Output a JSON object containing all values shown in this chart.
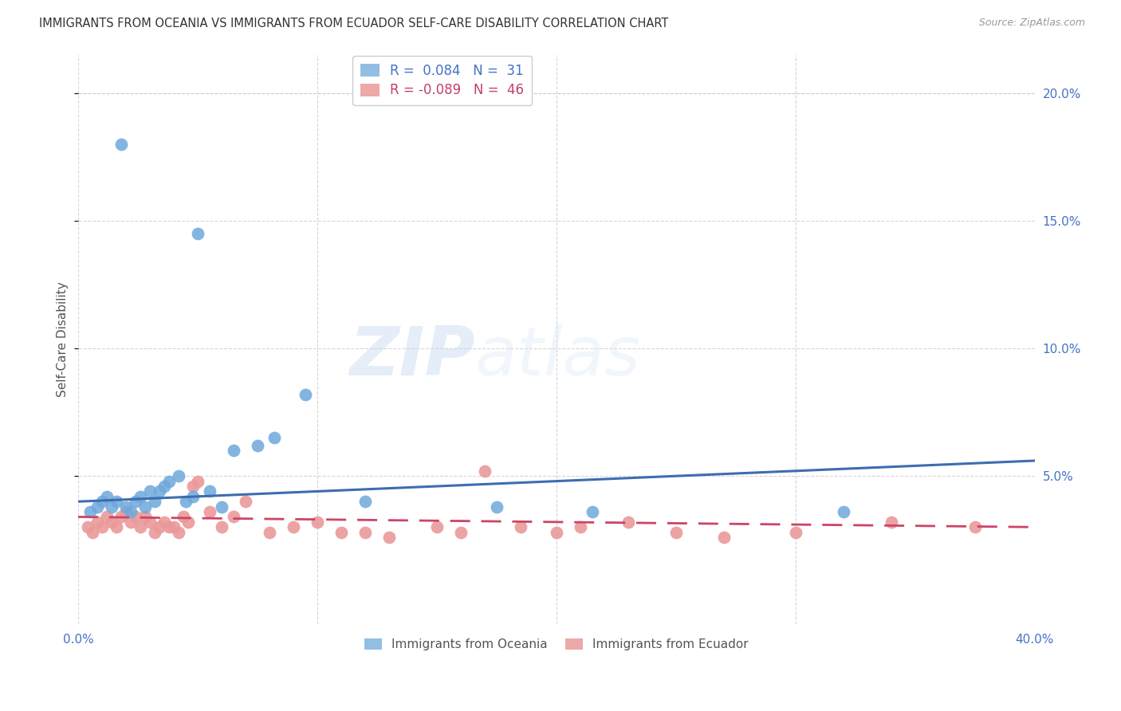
{
  "title": "IMMIGRANTS FROM OCEANIA VS IMMIGRANTS FROM ECUADOR SELF-CARE DISABILITY CORRELATION CHART",
  "source": "Source: ZipAtlas.com",
  "ylabel_label": "Self-Care Disability",
  "xlim": [
    0.0,
    0.4
  ],
  "ylim": [
    -0.008,
    0.215
  ],
  "legend_R1": "0.084",
  "legend_N1": "31",
  "legend_R2": "-0.089",
  "legend_N2": "46",
  "blue_color": "#6FA8DC",
  "pink_color": "#EA9999",
  "trend_blue": "#3C6DB0",
  "trend_pink": "#CC4466",
  "background_color": "#FFFFFF",
  "blue_scatter_x": [
    0.005,
    0.008,
    0.01,
    0.012,
    0.014,
    0.016,
    0.018,
    0.02,
    0.022,
    0.024,
    0.026,
    0.028,
    0.03,
    0.032,
    0.034,
    0.036,
    0.038,
    0.042,
    0.045,
    0.048,
    0.05,
    0.055,
    0.06,
    0.065,
    0.075,
    0.082,
    0.095,
    0.12,
    0.175,
    0.215,
    0.32
  ],
  "blue_scatter_y": [
    0.036,
    0.038,
    0.04,
    0.042,
    0.038,
    0.04,
    0.18,
    0.038,
    0.036,
    0.04,
    0.042,
    0.038,
    0.044,
    0.04,
    0.044,
    0.046,
    0.048,
    0.05,
    0.04,
    0.042,
    0.145,
    0.044,
    0.038,
    0.06,
    0.062,
    0.065,
    0.082,
    0.04,
    0.038,
    0.036,
    0.036
  ],
  "pink_scatter_x": [
    0.004,
    0.006,
    0.008,
    0.01,
    0.012,
    0.014,
    0.016,
    0.018,
    0.02,
    0.022,
    0.024,
    0.026,
    0.028,
    0.03,
    0.032,
    0.034,
    0.036,
    0.038,
    0.04,
    0.042,
    0.044,
    0.046,
    0.048,
    0.05,
    0.055,
    0.06,
    0.065,
    0.07,
    0.08,
    0.09,
    0.1,
    0.11,
    0.12,
    0.13,
    0.15,
    0.16,
    0.17,
    0.185,
    0.2,
    0.21,
    0.23,
    0.25,
    0.27,
    0.3,
    0.34,
    0.375
  ],
  "pink_scatter_y": [
    0.03,
    0.028,
    0.032,
    0.03,
    0.034,
    0.032,
    0.03,
    0.034,
    0.036,
    0.032,
    0.034,
    0.03,
    0.034,
    0.032,
    0.028,
    0.03,
    0.032,
    0.03,
    0.03,
    0.028,
    0.034,
    0.032,
    0.046,
    0.048,
    0.036,
    0.03,
    0.034,
    0.04,
    0.028,
    0.03,
    0.032,
    0.028,
    0.028,
    0.026,
    0.03,
    0.028,
    0.052,
    0.03,
    0.028,
    0.03,
    0.032,
    0.028,
    0.026,
    0.028,
    0.032,
    0.03
  ],
  "blue_trend_x": [
    0.0,
    0.4
  ],
  "blue_trend_y": [
    0.04,
    0.056
  ],
  "pink_trend_x": [
    0.0,
    0.4
  ],
  "pink_trend_y": [
    0.034,
    0.03
  ],
  "x_ticks": [
    0.0,
    0.1,
    0.2,
    0.3,
    0.4
  ],
  "x_tick_labels": [
    "0.0%",
    "",
    "",
    "",
    "40.0%"
  ],
  "y_ticks": [
    0.05,
    0.1,
    0.15,
    0.2
  ],
  "y_tick_labels": [
    "5.0%",
    "10.0%",
    "15.0%",
    "20.0%"
  ]
}
